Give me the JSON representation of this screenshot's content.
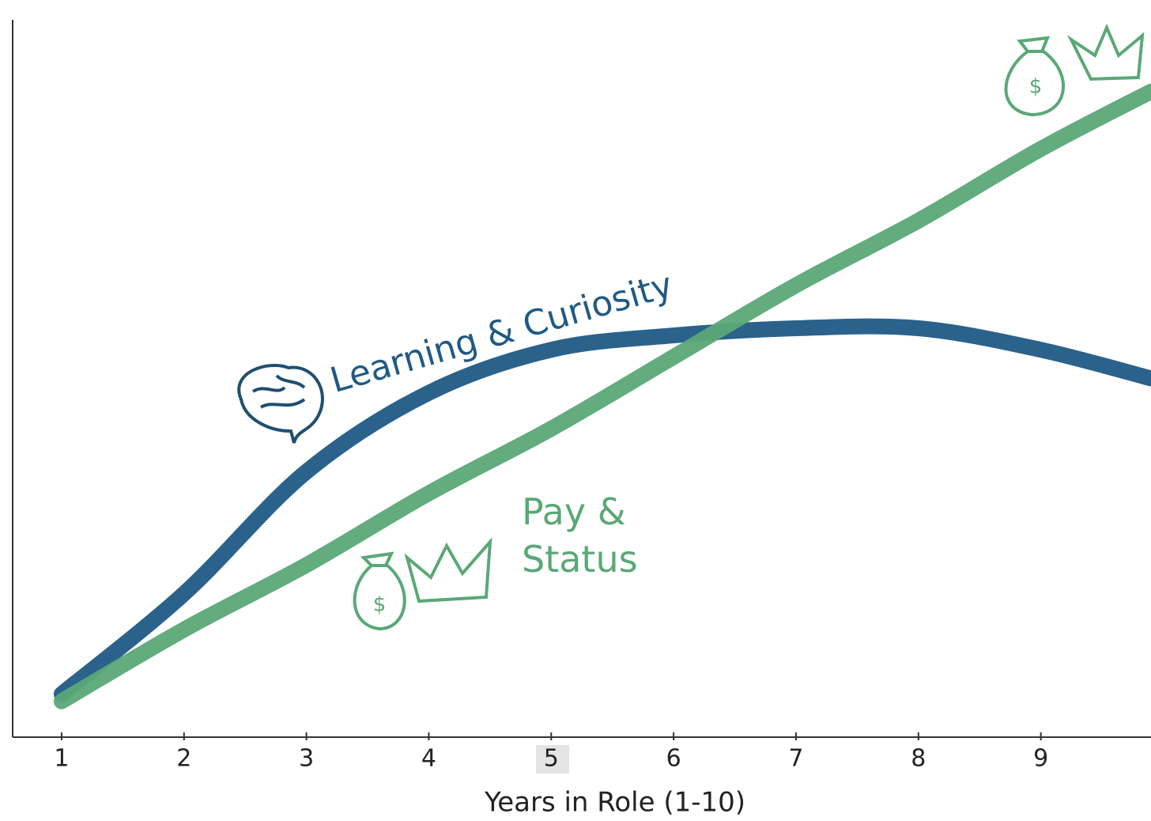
{
  "chart_data": {
    "type": "line",
    "x_label": "Years in Role (1-10)",
    "x": [
      1,
      2,
      3,
      4,
      5,
      6,
      7,
      8,
      9,
      9.9
    ],
    "xlim": [
      0.6,
      9.9
    ],
    "xticks": [
      1,
      2,
      3,
      4,
      5,
      6,
      7,
      8,
      9
    ],
    "ylim": [
      0,
      100
    ],
    "series": [
      {
        "name": "Learning & Curiosity",
        "color": "#1f5a85",
        "values": [
          6,
          20,
          37,
          48,
          54,
          56,
          57,
          57,
          54,
          50
        ]
      },
      {
        "name": "Pay & Status",
        "color": "#5aa877",
        "values": [
          5,
          15,
          24,
          34,
          43,
          53,
          63,
          72,
          82,
          90
        ]
      }
    ]
  }
}
